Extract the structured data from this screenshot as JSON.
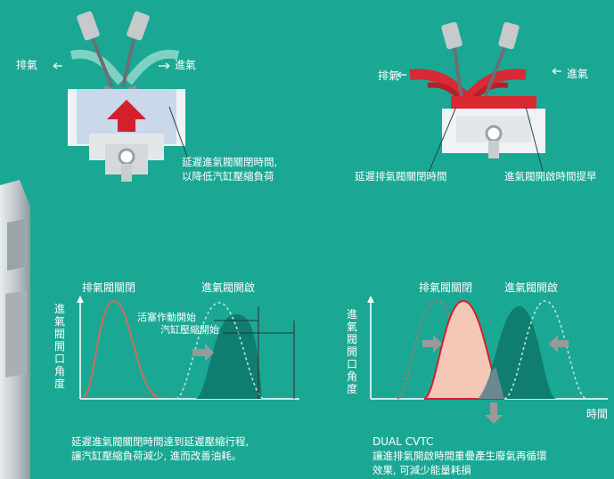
{
  "colors": {
    "background": "#1aa894",
    "piston": "#c9d8ea",
    "arrow_red": "#d3202b",
    "highlight": "#d92a33",
    "exhaust_curve": "#d06a5e",
    "intake_fill": "#0f7d70",
    "peach_fill": "#f4c7b6",
    "gray_arrow": "#9a9a9a"
  },
  "top_left": {
    "exhaust_label": "排氣",
    "intake_label": "進氣",
    "caption_line1": "延遲進氣閥關閉時間,",
    "caption_line2": "以降低汽缸壓縮負荷"
  },
  "top_right": {
    "exhaust_label": "排氣",
    "intake_label": "進氣",
    "delay_exhaust_label": "延遲排氣閥關閉時間",
    "advance_intake_label": "進氣閥開啟時間提早"
  },
  "chart_left": {
    "exhaust_close": "排氣閥關閉",
    "intake_open": "進氣閥開啟",
    "piston_start": "活塞作動開始",
    "compress_start": "汽缸壓縮開始",
    "y_axis": "進氣閥開口角度",
    "caption_line1": "延遲進氣閥關閉時間達到延遲壓縮行程,",
    "caption_line2": "讓汽缸壓縮負荷減少, 進而改善油耗。"
  },
  "chart_right": {
    "exhaust_close": "排氣閥關閉",
    "intake_open": "進氣閥開啟",
    "y_axis": "進氣閥開口角度",
    "x_axis": "時間",
    "title": "DUAL CVTC",
    "caption_line1": "讓進排氣開啟時間重疊產生廢氣再循環",
    "caption_line2": "效果, 可減少能量耗損"
  },
  "icons": {
    "piston": "piston-icon",
    "valve": "valve-icon",
    "arrow": "arrow-icon"
  }
}
